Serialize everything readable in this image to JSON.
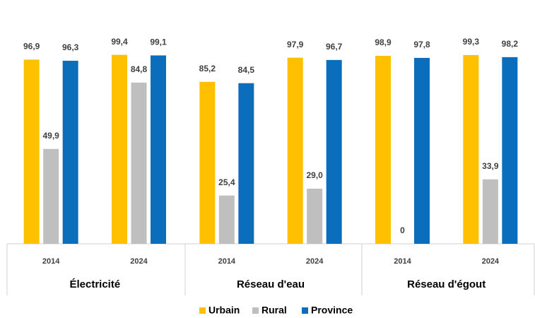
{
  "chart_data": {
    "type": "bar",
    "groups": [
      "Électricité",
      "Réseau d'eau",
      "Réseau d'égout"
    ],
    "categories": [
      "2014",
      "2024",
      "2014",
      "2024",
      "2014",
      "2024"
    ],
    "series": [
      {
        "name": "Urbain",
        "color": "#FFC000",
        "values": [
          96.9,
          99.4,
          85.2,
          97.9,
          98.9,
          99.3
        ],
        "value_labels": [
          "96,9",
          "99,4",
          "85,2",
          "97,9",
          "98,9",
          "99,3"
        ]
      },
      {
        "name": "Rural",
        "color": "#BFBFBF",
        "values": [
          49.9,
          84.8,
          25.4,
          29.0,
          0,
          33.9
        ],
        "value_labels": [
          "49,9",
          "84,8",
          "25,4",
          "29,0",
          "0",
          "33,9"
        ]
      },
      {
        "name": "Province",
        "color": "#0A6EBD",
        "values": [
          96.3,
          99.1,
          84.5,
          96.7,
          97.8,
          98.2
        ],
        "value_labels": [
          "96,3",
          "99,1",
          "84,5",
          "96,7",
          "97,8",
          "98,2"
        ]
      }
    ],
    "ylim": [
      0,
      100
    ]
  }
}
